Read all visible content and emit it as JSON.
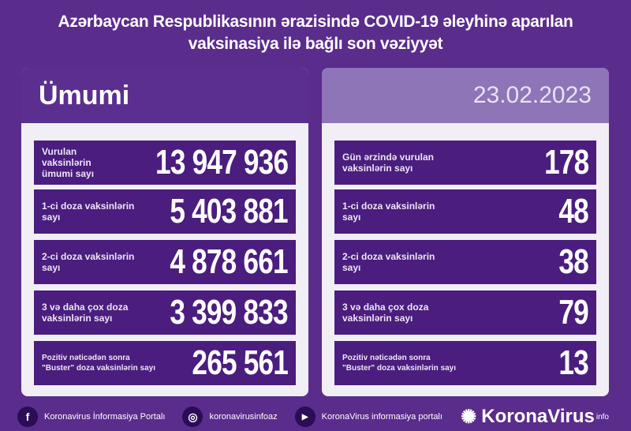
{
  "title_line1": "Azərbaycan Respublikasının ərazisində COVID-19 əleyhinə aparılan",
  "title_line2": "vaksinasiya ilə bağlı son vəziyyət",
  "left": {
    "header": "Ümumi",
    "rows": [
      {
        "label": "Vurulan vaksinlərin ümumi sayı",
        "value": "13 947 936"
      },
      {
        "label": "1-ci doza vaksinlərin sayı",
        "value": "5 403 881"
      },
      {
        "label": "2-ci doza vaksinlərin sayı",
        "value": "4 878 661"
      },
      {
        "label": "3 və daha çox doza vaksinlərin sayı",
        "value": "3 399 833"
      },
      {
        "label": "Pozitiv nəticədən sonra \"Buster\" doza vaksinlərin sayı",
        "value": "265 561"
      }
    ]
  },
  "right": {
    "header": "23.02.2023",
    "rows": [
      {
        "label": "Gün ərzində vurulan vaksinlərin sayı",
        "value": "178"
      },
      {
        "label": "1-ci doza vaksinlərin sayı",
        "value": "48"
      },
      {
        "label": "2-ci doza vaksinlərin sayı",
        "value": "38"
      },
      {
        "label": "3 və daha çox doza vaksinlərin sayı",
        "value": "79"
      },
      {
        "label": "Pozitiv nəticədən sonra \"Buster\" doza vaksinlərin sayı",
        "value": "13"
      }
    ]
  },
  "footer": {
    "facebook": "Koronavirus İnformasiya Portalı",
    "instagram": "koronavirusinfoaz",
    "youtube": "KoronaVirus informasiya portalı",
    "brand": "KoronaVirus",
    "brand_sup": "info",
    "icons": [
      "facebook-icon",
      "instagram-icon",
      "youtube-icon",
      "virus-logo-icon"
    ]
  },
  "colors": {
    "background": "#5a2c8c",
    "row": "#4a1d7e",
    "panel": "#f1eef6",
    "date_header": "#8d75b8"
  }
}
